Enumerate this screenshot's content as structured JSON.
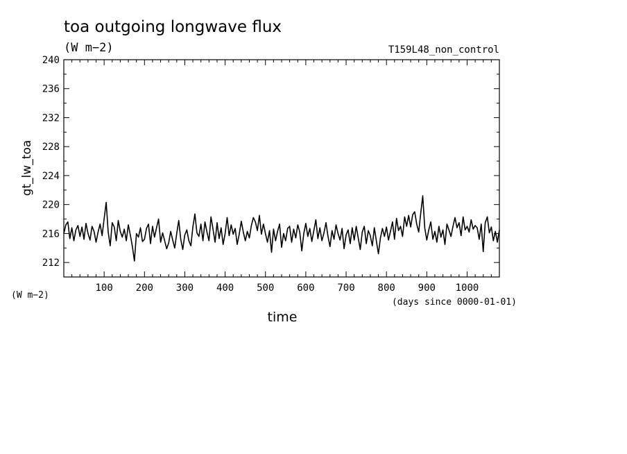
{
  "chart_data": {
    "type": "line",
    "title": "toa outgoing longwave flux",
    "title_unit": "(W m−2)",
    "run_label": "T159L48_non_control",
    "ylabel": "gt_lw_toa",
    "ylabel_unit": "(W m−2)",
    "xlabel": "time",
    "xunit": "(days since 0000-01-01)",
    "xlim": [
      0,
      1080
    ],
    "ylim": [
      210,
      240
    ],
    "xticks": [
      "100",
      "200",
      "300",
      "400",
      "500",
      "600",
      "700",
      "800",
      "900",
      "1000"
    ],
    "xtick_values": [
      100,
      200,
      300,
      400,
      500,
      600,
      700,
      800,
      900,
      1000
    ],
    "yticks": [
      "240",
      "236",
      "232",
      "228",
      "224",
      "220",
      "216",
      "212"
    ],
    "ytick_values": [
      240,
      236,
      232,
      228,
      224,
      220,
      216,
      212
    ],
    "grid": false,
    "color": "#000000",
    "series": [
      {
        "x": [
          0,
          5,
          10,
          15,
          20,
          25,
          30,
          35,
          40,
          45,
          50,
          55,
          60,
          65,
          70,
          75,
          80,
          85,
          90,
          95,
          100,
          105,
          110,
          115,
          120,
          125,
          130,
          135,
          140,
          145,
          150,
          155,
          160,
          165,
          170,
          175,
          180,
          185,
          190,
          195,
          200,
          205,
          210,
          215,
          220,
          225,
          230,
          235,
          240,
          245,
          250,
          255,
          260,
          265,
          270,
          275,
          280,
          285,
          290,
          295,
          300,
          305,
          310,
          315,
          320,
          325,
          330,
          335,
          340,
          345,
          350,
          355,
          360,
          365,
          370,
          375,
          380,
          385,
          390,
          395,
          400,
          405,
          410,
          415,
          420,
          425,
          430,
          435,
          440,
          445,
          450,
          455,
          460,
          465,
          470,
          475,
          480,
          485,
          490,
          495,
          500,
          505,
          510,
          515,
          520,
          525,
          530,
          535,
          540,
          545,
          550,
          555,
          560,
          565,
          570,
          575,
          580,
          585,
          590,
          595,
          600,
          605,
          610,
          615,
          620,
          625,
          630,
          635,
          640,
          645,
          650,
          655,
          660,
          665,
          670,
          675,
          680,
          685,
          690,
          695,
          700,
          705,
          710,
          715,
          720,
          725,
          730,
          735,
          740,
          745,
          750,
          755,
          760,
          765,
          770,
          775,
          780,
          785,
          790,
          795,
          800,
          805,
          810,
          815,
          820,
          825,
          830,
          835,
          840,
          845,
          850,
          855,
          860,
          865,
          870,
          875,
          880,
          885,
          890,
          895,
          900,
          905,
          910,
          915,
          920,
          925,
          930,
          935,
          940,
          945,
          950,
          955,
          960,
          965,
          970,
          975,
          980,
          985,
          990,
          995,
          1000,
          1005,
          1010,
          1015,
          1020,
          1025,
          1030,
          1035,
          1040,
          1045,
          1050,
          1055,
          1060,
          1065,
          1070,
          1075,
          1080
        ],
        "y": [
          216.0,
          217.2,
          217.6,
          215.3,
          216.8,
          215.0,
          216.5,
          217.1,
          215.6,
          216.9,
          215.2,
          217.4,
          216.0,
          215.1,
          217.0,
          216.3,
          214.8,
          216.2,
          217.3,
          215.7,
          218.0,
          220.3,
          216.2,
          214.3,
          217.5,
          216.9,
          215.0,
          217.8,
          216.3,
          215.5,
          216.6,
          215.0,
          217.2,
          215.8,
          214.2,
          212.2,
          216.0,
          215.5,
          216.8,
          214.9,
          215.2,
          216.7,
          217.3,
          214.6,
          217.0,
          215.5,
          216.8,
          218.0,
          214.8,
          216.1,
          215.0,
          213.9,
          214.7,
          216.3,
          215.1,
          214.0,
          216.0,
          217.8,
          215.2,
          213.8,
          215.8,
          216.5,
          215.0,
          214.3,
          216.9,
          218.7,
          216.1,
          215.6,
          217.3,
          215.0,
          217.6,
          216.2,
          215.0,
          218.3,
          216.6,
          214.8,
          217.5,
          215.3,
          216.8,
          214.5,
          216.0,
          218.2,
          215.7,
          217.2,
          215.9,
          216.7,
          214.5,
          215.9,
          217.7,
          216.2,
          215.0,
          216.3,
          215.4,
          217.1,
          218.2,
          217.6,
          216.4,
          218.5,
          215.9,
          217.3,
          216.0,
          214.8,
          216.4,
          213.4,
          216.6,
          215.0,
          216.3,
          217.3,
          214.1,
          216.0,
          215.0,
          216.7,
          217.0,
          214.8,
          216.6,
          215.4,
          217.2,
          216.2,
          213.6,
          216.0,
          217.4,
          215.6,
          216.7,
          214.9,
          216.4,
          217.9,
          215.3,
          216.8,
          215.0,
          216.1,
          217.5,
          215.6,
          214.2,
          216.4,
          215.2,
          217.2,
          216.0,
          215.1,
          216.7,
          213.9,
          215.8,
          216.5,
          214.6,
          216.8,
          215.1,
          217.0,
          215.4,
          213.8,
          216.2,
          217.0,
          214.6,
          216.4,
          215.7,
          214.3,
          216.8,
          215.0,
          213.2,
          215.4,
          216.7,
          215.6,
          216.9,
          215.1,
          216.3,
          217.6,
          215.2,
          218.1,
          216.4,
          217.0,
          215.6,
          218.3,
          217.0,
          218.5,
          216.9,
          218.6,
          219.0,
          217.3,
          216.2,
          218.8,
          221.2,
          216.8,
          215.1,
          216.5,
          217.6,
          215.2,
          216.3,
          214.8,
          217.0,
          215.5,
          216.5,
          214.5,
          217.3,
          216.5,
          215.6,
          217.0,
          218.2,
          216.8,
          217.5,
          215.7,
          218.3,
          216.5,
          217.0,
          216.2,
          217.9,
          216.6,
          217.1,
          216.8,
          215.2,
          217.3,
          213.5,
          217.5,
          218.3,
          216.1,
          216.9,
          215.0,
          216.3,
          214.8,
          216.5
        ]
      }
    ]
  }
}
